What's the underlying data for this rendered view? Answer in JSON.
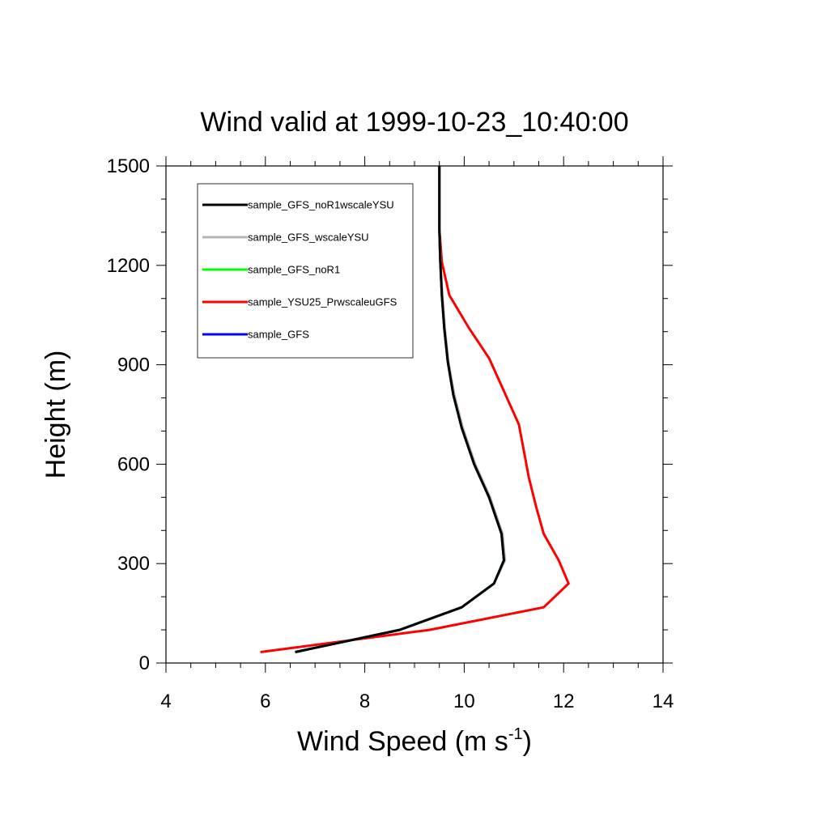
{
  "chart_data": {
    "type": "line",
    "title": "Wind valid at 1999-10-23_10:40:00",
    "xlabel": "Wind Speed (m s",
    "xlabel_sup": "-1",
    "xlabel_end": ")",
    "ylabel": "Height (m)",
    "xlim": [
      4,
      14
    ],
    "ylim": [
      0,
      1500
    ],
    "xticks": [
      4,
      6,
      8,
      10,
      12,
      14
    ],
    "xtick_labels": [
      "4",
      "6",
      "8",
      "10",
      "12",
      "14"
    ],
    "yticks": [
      0,
      300,
      600,
      900,
      1200,
      1500
    ],
    "ytick_labels": [
      "0",
      "300",
      "600",
      "900",
      "1200",
      "1500"
    ],
    "grid": false,
    "legend_position": "top-left",
    "series": [
      {
        "name": "sample_GFS_noR1wscaleYSU",
        "color": "#000000",
        "points": [
          [
            6.6,
            33
          ],
          [
            8.7,
            100
          ],
          [
            9.95,
            168
          ],
          [
            10.6,
            240
          ],
          [
            10.8,
            310
          ],
          [
            10.75,
            390
          ],
          [
            10.5,
            500
          ],
          [
            10.2,
            600
          ],
          [
            9.95,
            710
          ],
          [
            9.78,
            810
          ],
          [
            9.67,
            910
          ],
          [
            9.6,
            1010
          ],
          [
            9.55,
            1110
          ],
          [
            9.52,
            1210
          ],
          [
            9.5,
            1310
          ],
          [
            9.5,
            1400
          ],
          [
            9.5,
            1500
          ]
        ]
      },
      {
        "name": "sample_GFS_wscaleYSU",
        "color": "#b4b4b4",
        "points": [
          [
            6.6,
            33
          ],
          [
            8.7,
            100
          ],
          [
            9.95,
            168
          ],
          [
            10.6,
            240
          ],
          [
            10.82,
            310
          ],
          [
            10.77,
            390
          ],
          [
            10.52,
            500
          ],
          [
            10.22,
            600
          ],
          [
            9.97,
            710
          ],
          [
            9.8,
            810
          ],
          [
            9.68,
            910
          ],
          [
            9.61,
            1010
          ],
          [
            9.56,
            1110
          ],
          [
            9.52,
            1210
          ],
          [
            9.5,
            1310
          ],
          [
            9.5,
            1400
          ],
          [
            9.5,
            1500
          ]
        ]
      },
      {
        "name": "sample_GFS_noR1",
        "color": "#00ff00",
        "points": [
          [
            6.6,
            33
          ],
          [
            8.7,
            100
          ],
          [
            9.95,
            168
          ],
          [
            10.6,
            240
          ],
          [
            10.8,
            310
          ],
          [
            10.75,
            390
          ],
          [
            10.5,
            500
          ],
          [
            10.2,
            600
          ],
          [
            9.95,
            710
          ],
          [
            9.78,
            810
          ],
          [
            9.67,
            910
          ],
          [
            9.6,
            1010
          ],
          [
            9.55,
            1110
          ],
          [
            9.52,
            1210
          ],
          [
            9.5,
            1310
          ],
          [
            9.5,
            1400
          ],
          [
            9.5,
            1500
          ]
        ]
      },
      {
        "name": "sample_YSU25_PrwscaleuGFS",
        "color": "#ff0000",
        "points": [
          [
            5.9,
            33
          ],
          [
            9.3,
            100
          ],
          [
            11.6,
            168
          ],
          [
            12.1,
            240
          ],
          [
            11.9,
            310
          ],
          [
            11.6,
            390
          ],
          [
            11.45,
            470
          ],
          [
            11.3,
            560
          ],
          [
            11.2,
            640
          ],
          [
            11.1,
            720
          ],
          [
            10.8,
            820
          ],
          [
            10.5,
            920
          ],
          [
            10.1,
            1010
          ],
          [
            9.7,
            1110
          ],
          [
            9.55,
            1210
          ],
          [
            9.5,
            1310
          ],
          [
            9.5,
            1400
          ],
          [
            9.5,
            1500
          ]
        ]
      },
      {
        "name": "sample_GFS",
        "color": "#0000ff",
        "points": [
          [
            6.6,
            33
          ],
          [
            8.7,
            100
          ],
          [
            9.95,
            168
          ],
          [
            10.6,
            240
          ],
          [
            10.8,
            310
          ],
          [
            10.75,
            390
          ],
          [
            10.5,
            500
          ],
          [
            10.2,
            600
          ],
          [
            9.95,
            710
          ],
          [
            9.78,
            810
          ],
          [
            9.67,
            910
          ],
          [
            9.6,
            1010
          ],
          [
            9.55,
            1110
          ],
          [
            9.52,
            1210
          ],
          [
            9.5,
            1310
          ],
          [
            9.5,
            1400
          ],
          [
            9.5,
            1500
          ]
        ]
      }
    ],
    "draw_order": [
      "sample_GFS",
      "sample_YSU25_PrwscaleuGFS",
      "sample_GFS_noR1",
      "sample_GFS_wscaleYSU",
      "sample_GFS_noR1wscaleYSU"
    ]
  }
}
